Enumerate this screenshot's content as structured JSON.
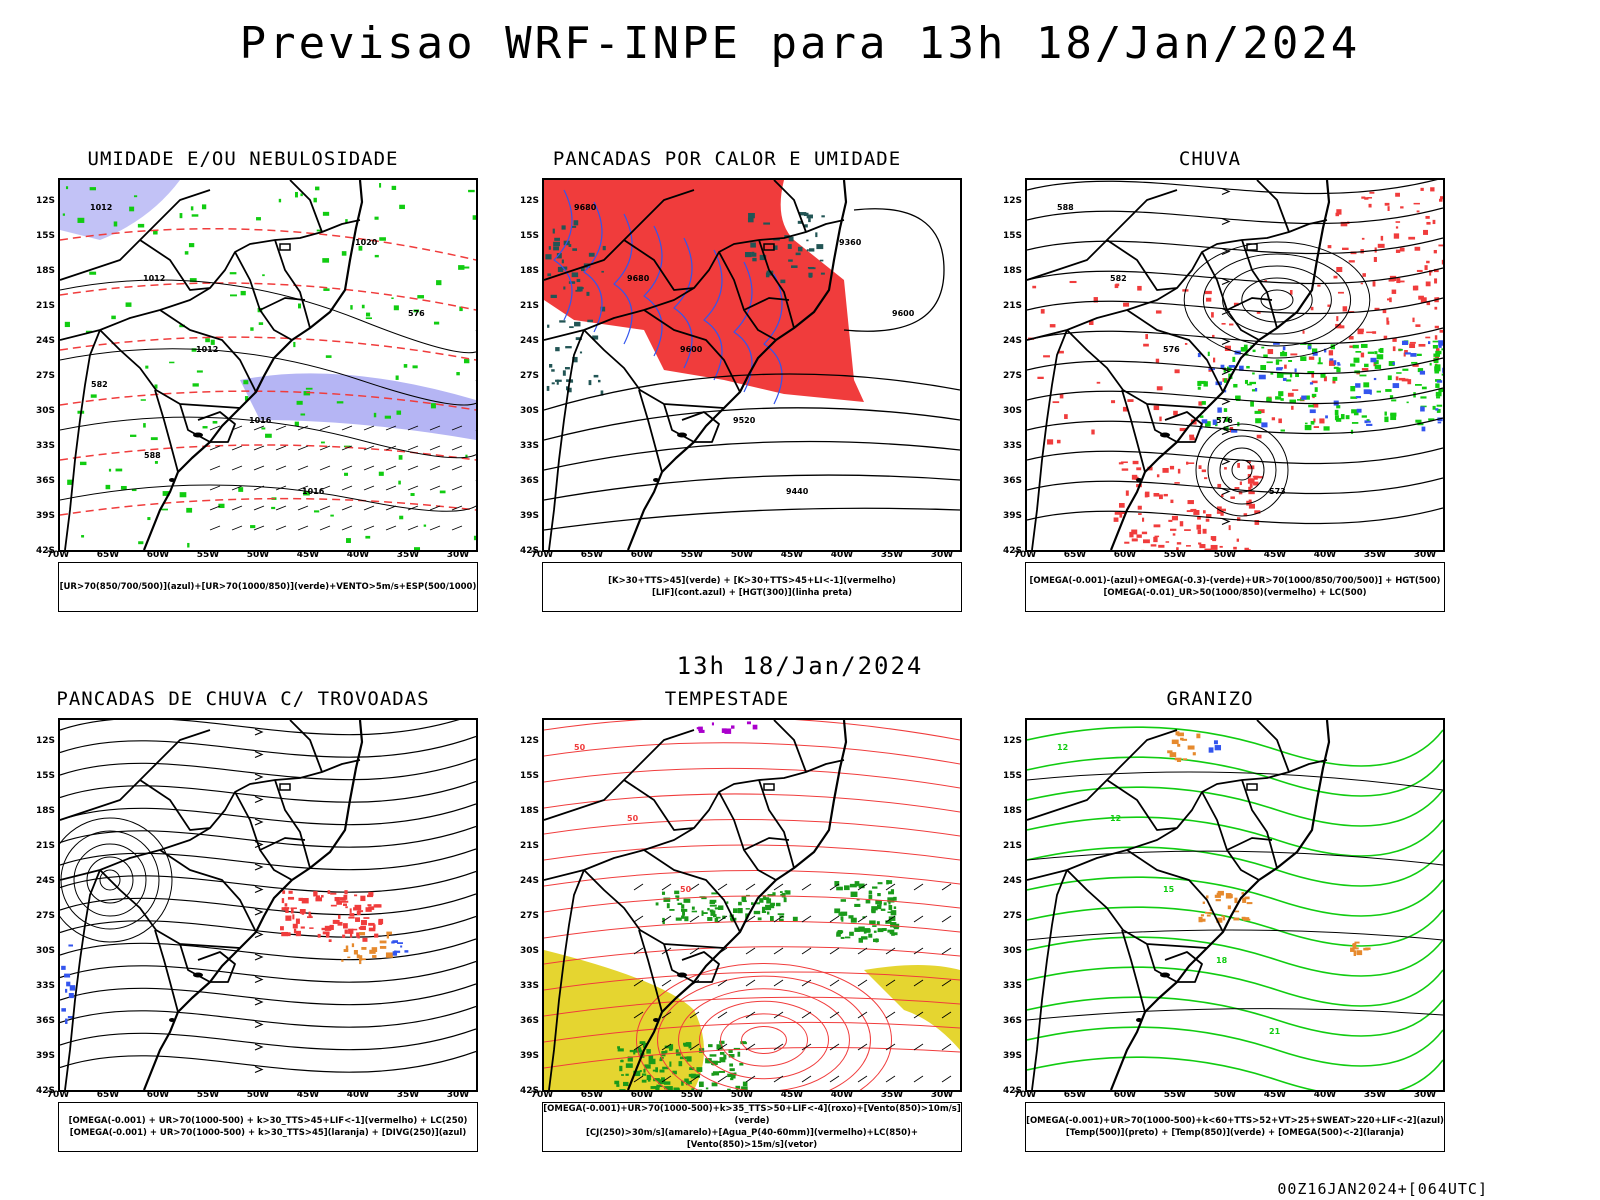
{
  "header": {
    "title": "Previsao WRF-INPE  para 13h 18/Jan/2024",
    "mid_date": "13h 18/Jan/2024",
    "run_info": "00Z16JAN2024+[064UTC]"
  },
  "axes": {
    "lat_labels": [
      "12S",
      "15S",
      "18S",
      "21S",
      "24S",
      "27S",
      "30S",
      "33S",
      "36S",
      "39S",
      "42S"
    ],
    "lon_labels": [
      "70W",
      "65W",
      "60W",
      "55W",
      "50W",
      "45W",
      "40W",
      "35W",
      "30W"
    ]
  },
  "colors": {
    "red": "#f03c3c",
    "green": "#11cc11",
    "blue": "#3355ee",
    "lavender": "#a8a8f2",
    "teal": "#225555",
    "yellow": "#e5d530",
    "orange": "#e68a2e",
    "purple": "#aa00cc"
  },
  "panels": [
    {
      "id": "umidade",
      "title": "UMIDADE E/OU NEBULOSIDADE",
      "legend": [
        "[UR>70(850/700/500)](azul)+[UR>70(1000/850)](verde)+VENTO>5m/s+ESP(500/1000)"
      ],
      "contour_labels": [
        "1012",
        "1012",
        "1012",
        "1016",
        "1016",
        "1020",
        "576",
        "582",
        "588"
      ]
    },
    {
      "id": "pancadas-calor",
      "title": "PANCADAS POR CALOR E UMIDADE",
      "legend": [
        "[K>30+TTS>45](verde) + [K>30+TTS>45+LI<-1](vermelho)",
        "[LIF](cont.azul) + [HGT(300)](linha preta)"
      ],
      "contour_labels": [
        "9680",
        "9680",
        "9600",
        "9520",
        "9440",
        "9360",
        "9600"
      ]
    },
    {
      "id": "chuva",
      "title": "CHUVA",
      "legend": [
        "[OMEGA(-0.001)-(azul)+OMEGA(-0.3)-(verde)+UR>70(1000/850/700/500)] + HGT(500)",
        "[OMEGA(-0.01)_UR>50(1000/850)(vermelho) + LC(500)"
      ],
      "contour_labels": [
        "588",
        "582",
        "576",
        "576",
        "573"
      ]
    },
    {
      "id": "pancadas-trovoadas",
      "title": "PANCADAS DE CHUVA C/ TROVOADAS",
      "legend": [
        "[OMEGA(-0.001) + UR>70(1000-500) + k>30_TTS>45+LIF<-1](vermelho) + LC(250)",
        "[OMEGA(-0.001) + UR>70(1000-500) + k>30_TTS>45](laranja) + [DIVG(250)](azul)"
      ],
      "contour_labels": []
    },
    {
      "id": "tempestade",
      "title": "TEMPESTADE",
      "legend": [
        "[OMEGA(-0.001)+UR>70(1000-500)+k>35_TTS>50+LIF<-4](roxo)+[Vento(850)>10m/s](verde)",
        "[CJ(250)>30m/s](amarelo)+[Agua_P(40-60mm)](vermelho)+LC(850)+[Vento(850)>15m/s](vetor)"
      ],
      "contour_labels": [
        "50",
        "50",
        "50"
      ]
    },
    {
      "id": "granizo",
      "title": "GRANIZO",
      "legend": [
        "[OMEGA(-0.001)+UR>70(1000-500)+k<60+TTS>52+VT>25+SWEAT>220+LIF<-2](azul)",
        "[Temp(500)](preto) + [Temp(850)](verde) + [OMEGA(500)<-2](laranja)"
      ],
      "contour_labels": [
        "12",
        "12",
        "15",
        "18",
        "21"
      ]
    }
  ]
}
